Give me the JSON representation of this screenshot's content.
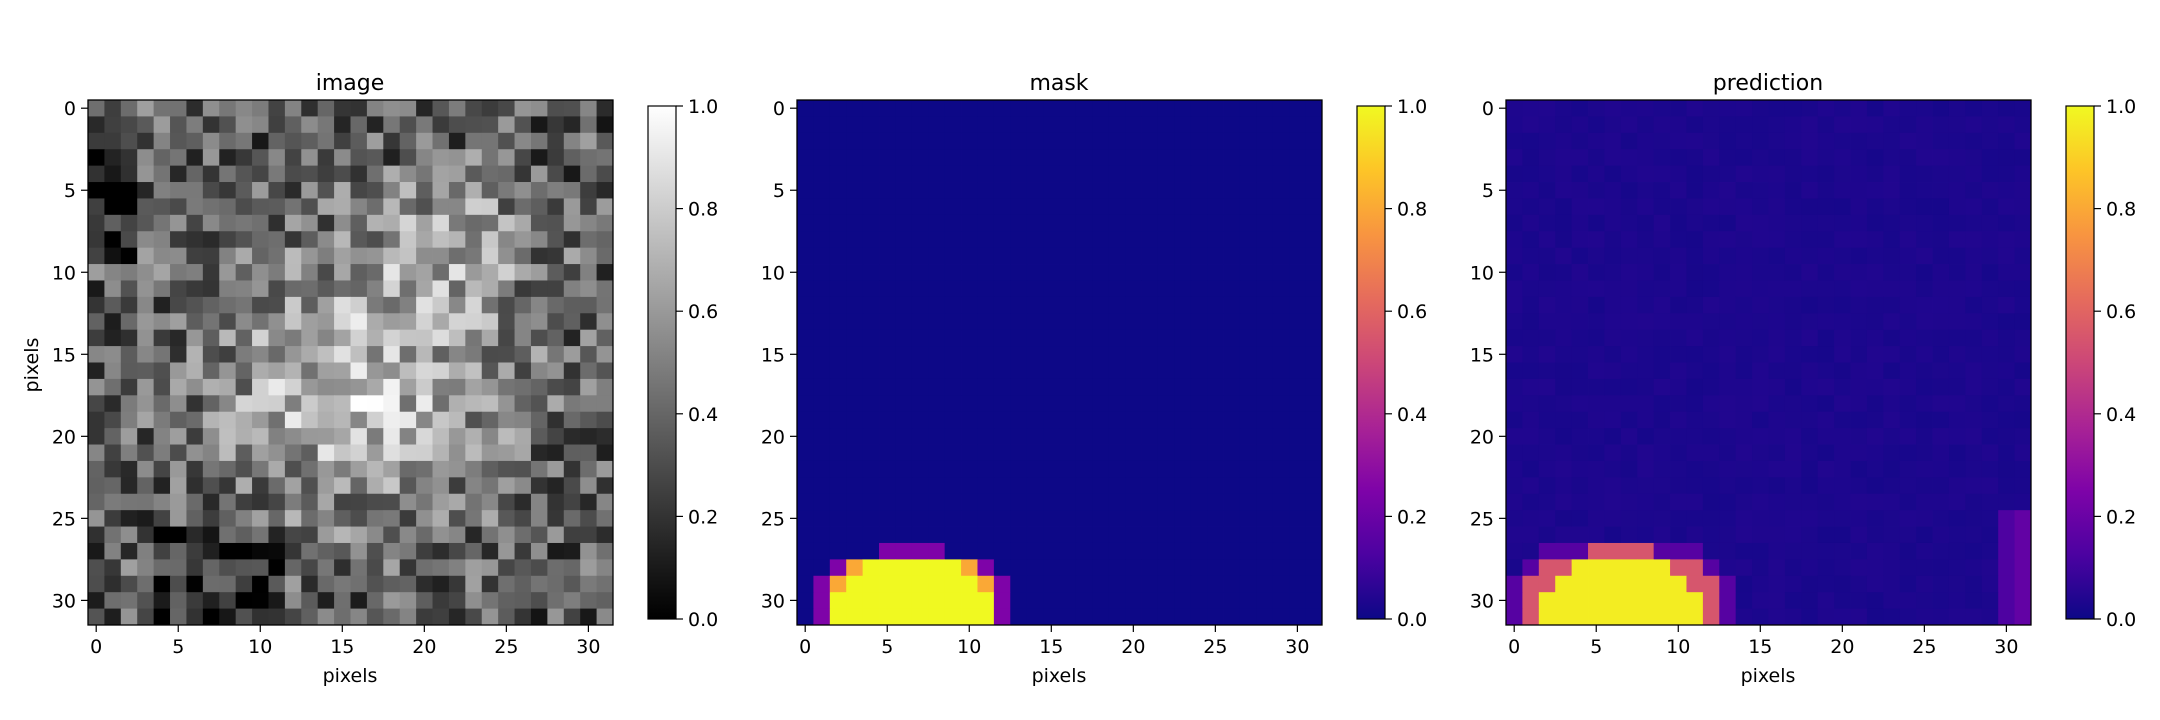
{
  "figure": {
    "background": "#ffffff"
  },
  "chart_data": [
    {
      "type": "heatmap",
      "title": "image",
      "xlabel": "pixels",
      "ylabel": "pixels",
      "colormap": "gray",
      "grid": false,
      "xlim": [
        -0.5,
        31.5
      ],
      "ylim": [
        31.5,
        -0.5
      ],
      "xticks": [
        0,
        5,
        10,
        15,
        20,
        25,
        30
      ],
      "yticks": [
        0,
        5,
        10,
        15,
        20,
        25,
        30
      ],
      "xtick_labels": [
        "0",
        "5",
        "10",
        "15",
        "20",
        "25",
        "30"
      ],
      "ytick_labels": [
        "0",
        "5",
        "10",
        "15",
        "20",
        "25",
        "30"
      ],
      "colorbar": {
        "range": [
          0,
          1
        ],
        "ticks": [
          "0.0",
          "0.2",
          "0.4",
          "0.6",
          "0.8",
          "1.0"
        ]
      },
      "rows": 32,
      "cols": 32,
      "description_of_values": "random grayscale noise texture with a brighter blob spanning the upper right and center-left",
      "values": "generated"
    },
    {
      "type": "heatmap",
      "title": "mask",
      "xlabel": "pixels",
      "ylabel": "",
      "colormap": "plasma",
      "grid": false,
      "xlim": [
        -0.5,
        31.5
      ],
      "ylim": [
        31.5,
        -0.5
      ],
      "xticks": [
        0,
        5,
        10,
        15,
        20,
        25,
        30
      ],
      "yticks": [
        0,
        5,
        10,
        15,
        20,
        25,
        30
      ],
      "xtick_labels": [
        "0",
        "5",
        "10",
        "15",
        "20",
        "25",
        "30"
      ],
      "ytick_labels": [
        "0",
        "5",
        "10",
        "15",
        "20",
        "25",
        "30"
      ],
      "colorbar": {
        "range": [
          0,
          1
        ],
        "ticks": [
          "0.0",
          "0.2",
          "0.4",
          "0.6",
          "0.8",
          "1.0"
        ]
      },
      "rows": 32,
      "cols": 32,
      "blob": {
        "center_col": 6.5,
        "center_row": 30.5,
        "rx": 5.8,
        "ry": 3.6,
        "value": 1.0
      }
    },
    {
      "type": "heatmap",
      "title": "prediction",
      "xlabel": "pixels",
      "ylabel": "",
      "colormap": "plasma",
      "grid": false,
      "xlim": [
        -0.5,
        31.5
      ],
      "ylim": [
        31.5,
        -0.5
      ],
      "xticks": [
        0,
        5,
        10,
        15,
        20,
        25,
        30
      ],
      "yticks": [
        0,
        5,
        10,
        15,
        20,
        25,
        30
      ],
      "xtick_labels": [
        "0",
        "5",
        "10",
        "15",
        "20",
        "25",
        "30"
      ],
      "ytick_labels": [
        "0",
        "5",
        "10",
        "15",
        "20",
        "25",
        "30"
      ],
      "colorbar": {
        "range": [
          0,
          1
        ],
        "ticks": [
          "0.0",
          "0.2",
          "0.4",
          "0.6",
          "0.8",
          "1.0"
        ]
      },
      "rows": 32,
      "cols": 32,
      "blob": {
        "center_col": 6.5,
        "center_row": 30.5,
        "rx": 5.8,
        "ry": 3.6,
        "value": 0.97
      }
    }
  ]
}
